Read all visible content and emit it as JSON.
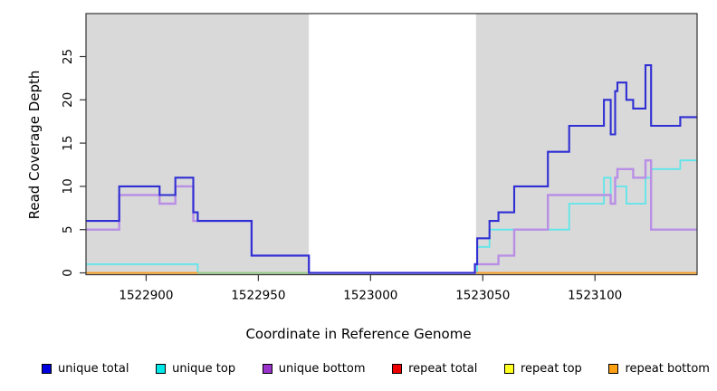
{
  "chart_data": {
    "type": "step-line",
    "title": "",
    "xlabel": "Coordinate in Reference Genome",
    "ylabel": "Read Coverage Depth",
    "x_ticks": [
      1522900,
      1522950,
      1523000,
      1523050,
      1523100
    ],
    "y_ticks": [
      0,
      5,
      10,
      15,
      20,
      25
    ],
    "xlim": [
      1522873.2,
      1523145.5
    ],
    "ylim": [
      0,
      29.97
    ],
    "grid": false,
    "plot_background": "#ffffff",
    "shaded_regions": [
      {
        "name": "left-gray-region",
        "x0": 1522873.2,
        "x1": 1522972.5,
        "color": "#d9d9d9"
      },
      {
        "name": "right-gray-region",
        "x0": 1523047.0,
        "x1": 1523145.5,
        "color": "#d9d9d9"
      }
    ],
    "unshaded_gap": {
      "x0": 1522972.5,
      "x1": 1523047.0
    },
    "series": [
      {
        "name": "repeat-total",
        "label": "repeat total",
        "color": "#ee0000",
        "width": 1.2,
        "steps": [
          [
            1522873.2,
            0
          ]
        ]
      },
      {
        "name": "repeat-top",
        "label": "repeat top",
        "color": "#ffff22",
        "width": 1.2,
        "steps": [
          [
            1522873.2,
            0
          ]
        ]
      },
      {
        "name": "unique-top",
        "label": "unique top",
        "color": "#5ee6ea",
        "width": 1.8,
        "steps": [
          [
            1522873.2,
            1
          ],
          [
            1522923,
            0
          ],
          [
            1523047.5,
            3
          ],
          [
            1523053,
            5
          ],
          [
            1523088.5,
            8
          ],
          [
            1523104,
            11
          ],
          [
            1523107,
            8
          ],
          [
            1523109,
            10
          ],
          [
            1523114,
            8
          ],
          [
            1523122.5,
            11
          ],
          [
            1523125,
            12
          ],
          [
            1523138,
            13
          ]
        ]
      },
      {
        "name": "repeat-bottom",
        "label": "repeat bottom",
        "color": "#ff9d1e",
        "width": 1.8,
        "steps": [
          [
            1522873.2,
            0
          ]
        ]
      },
      {
        "name": "unique-bottom",
        "label": "unique bottom",
        "color": "#b98fe6",
        "width": 2.4,
        "steps": [
          [
            1522873.2,
            5
          ],
          [
            1522888,
            9
          ],
          [
            1522906,
            8
          ],
          [
            1522913,
            10
          ],
          [
            1522921,
            6
          ],
          [
            1522947,
            2
          ],
          [
            1522972.5,
            0
          ],
          [
            1523046.5,
            1
          ],
          [
            1523057,
            2
          ],
          [
            1523064,
            5
          ],
          [
            1523079,
            9
          ],
          [
            1523107,
            8
          ],
          [
            1523109,
            11
          ],
          [
            1523110,
            12
          ],
          [
            1523117,
            11
          ],
          [
            1523122.5,
            13
          ],
          [
            1523125,
            5
          ]
        ]
      },
      {
        "name": "unique-total",
        "label": "unique total",
        "color": "#2f2fd4",
        "width": 2.1,
        "steps": [
          [
            1522873.2,
            6
          ],
          [
            1522888,
            10
          ],
          [
            1522906,
            9
          ],
          [
            1522913,
            11
          ],
          [
            1522921,
            7
          ],
          [
            1522923,
            6
          ],
          [
            1522947,
            2
          ],
          [
            1522972.5,
            0
          ],
          [
            1523046.5,
            1
          ],
          [
            1523047.5,
            4
          ],
          [
            1523053,
            6
          ],
          [
            1523057,
            7
          ],
          [
            1523064,
            10
          ],
          [
            1523079,
            14
          ],
          [
            1523088.5,
            17
          ],
          [
            1523104,
            20
          ],
          [
            1523107,
            16
          ],
          [
            1523109,
            21
          ],
          [
            1523110,
            22
          ],
          [
            1523114,
            20
          ],
          [
            1523117,
            19
          ],
          [
            1523122.5,
            24
          ],
          [
            1523125,
            17
          ],
          [
            1523138,
            18
          ]
        ]
      }
    ],
    "overlap_segments": [
      {
        "name": "cyan-orange-overlap",
        "note": "unique top and repeat bottom coincide at depth 0",
        "color": "#8fcf8f",
        "width": 1.8,
        "x0": 1522923,
        "x1": 1522972.5,
        "y": 0
      }
    ],
    "legend": {
      "position": "bottom",
      "items": [
        {
          "label": "unique total",
          "color": "#0000dd"
        },
        {
          "label": "unique top",
          "color": "#00e8e8"
        },
        {
          "label": "unique bottom",
          "color": "#9933cc"
        },
        {
          "label": "repeat total",
          "color": "#ee0000"
        },
        {
          "label": "repeat top",
          "color": "#ffff22"
        },
        {
          "label": "repeat bottom",
          "color": "#ffa013"
        }
      ]
    }
  }
}
